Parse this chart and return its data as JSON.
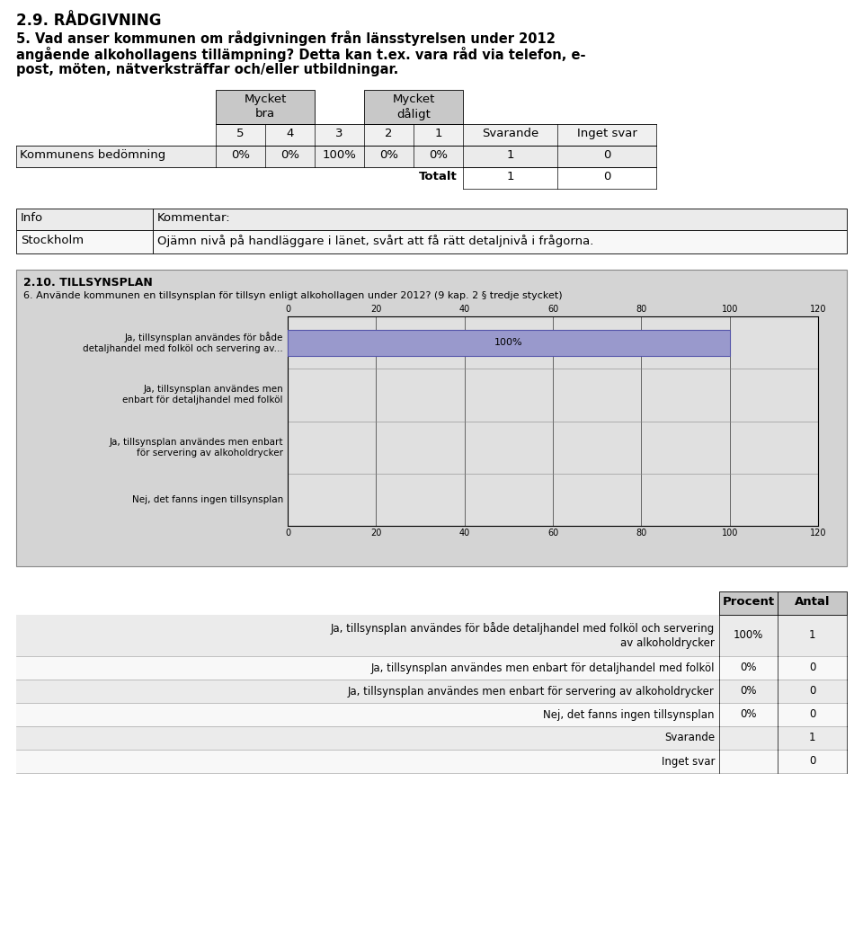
{
  "title_section": "2.9. RÅDGIVNING",
  "question_line1": "5. Vad anser kommunen om rådgivningen från länsstyrelsen under 2012",
  "question_line2": "angående alkohollagens tillämpning? Detta kan t.ex. vara råd via telefon, e-",
  "question_line3": "post, möten, nätverksträffar och/eller utbildningar.",
  "table1_row_label": "Kommunens bedömning",
  "table1_values": [
    "0%",
    "0%",
    "100%",
    "0%",
    "0%",
    "1",
    "0"
  ],
  "table1_totalt_label": "Totalt",
  "table1_totalt_values": [
    "1",
    "0"
  ],
  "comment_header_info": "Info",
  "comment_header_kom": "Kommentar:",
  "comment_row_info": "Stockholm",
  "comment_row_kom": "Ojämn nivå på handläggare i länet, svårt att få rätt detaljnivå i frågorna.",
  "chart_section": "2.10. TILLSYNSPLAN",
  "chart_question": "6. Använde kommunen en tillsynsplan för tillsyn enligt alkohollagen under 2012? (9 kap. 2 § tredje stycket)",
  "chart_bg_color": "#d4d4d4",
  "chart_bar_color": "#9999cc",
  "chart_bar_label": "100%",
  "chart_xlim": [
    0,
    120
  ],
  "chart_xticks": [
    0,
    20,
    40,
    60,
    80,
    100,
    120
  ],
  "chart_categories": [
    "Ja, tillsynsplan användes för både\ndetaljhandel med folköl och servering av...",
    "Ja, tillsynsplan användes men\nenbart för detaljhandel med folköl",
    "Ja, tillsynsplan användes men enbart\nför servering av alkoholdrycker",
    "Nej, det fanns ingen tillsynsplan"
  ],
  "chart_values": [
    100,
    0,
    0,
    0
  ],
  "t2_row0_label1": "Ja, tillsynsplan användes för både detaljhandel med folköl och servering",
  "t2_row0_label2": "av alkoholdrycker",
  "t2_row0_pct": "100%",
  "t2_row0_antal": "1",
  "t2_row1_label": "Ja, tillsynsplan användes men enbart för detaljhandel med folköl",
  "t2_row1_pct": "0%",
  "t2_row1_antal": "0",
  "t2_row2_label": "Ja, tillsynsplan användes men enbart för servering av alkoholdrycker",
  "t2_row2_pct": "0%",
  "t2_row2_antal": "0",
  "t2_row3_label": "Nej, det fanns ingen tillsynsplan",
  "t2_row3_pct": "0%",
  "t2_row3_antal": "0",
  "t2_svarande_label": "Svarande",
  "t2_svarande_antal": "1",
  "t2_inget_label": "Inget svar",
  "t2_inget_antal": "0",
  "bg_color": "#ffffff",
  "header_bg": "#c8c8c8",
  "row_bg_light": "#ebebeb",
  "row_bg_white": "#f8f8f8"
}
